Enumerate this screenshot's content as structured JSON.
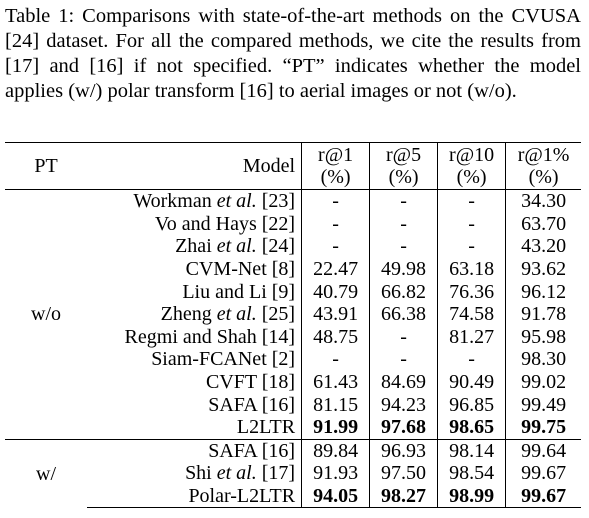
{
  "caption": "Table 1: Comparisons with state-of-the-art methods on the CVUSA [24] dataset. For all the compared methods, we cite the results from [17] and [16] if not specified. “PT” indicates whether the model applies (w/) polar transform [16] to aerial images or not (w/o).",
  "table": {
    "header": [
      "PT",
      "Model",
      [
        "r@1",
        "(%)"
      ],
      [
        "r@5",
        "(%)"
      ],
      [
        "r@10",
        "(%)"
      ],
      [
        "r@1%",
        "(%)"
      ]
    ],
    "groups": [
      {
        "pt": "w/o",
        "rows": [
          {
            "model": [
              "Workman ",
              "et al.",
              " [23]"
            ],
            "values": [
              "-",
              "-",
              "-",
              "34.30"
            ],
            "bold": false
          },
          {
            "model": [
              "Vo and Hays [22]"
            ],
            "values": [
              "-",
              "-",
              "-",
              "63.70"
            ],
            "bold": false
          },
          {
            "model": [
              "Zhai ",
              "et al.",
              " [24]"
            ],
            "values": [
              "-",
              "-",
              "-",
              "43.20"
            ],
            "bold": false
          },
          {
            "model": [
              "CVM-Net [8]"
            ],
            "values": [
              "22.47",
              "49.98",
              "63.18",
              "93.62"
            ],
            "bold": false
          },
          {
            "model": [
              "Liu and Li [9]"
            ],
            "values": [
              "40.79",
              "66.82",
              "76.36",
              "96.12"
            ],
            "bold": false
          },
          {
            "model": [
              "Zheng ",
              "et al.",
              " [25]"
            ],
            "values": [
              "43.91",
              "66.38",
              "74.58",
              "91.78"
            ],
            "bold": false
          },
          {
            "model": [
              "Regmi and Shah [14]"
            ],
            "values": [
              "48.75",
              "-",
              "81.27",
              "95.98"
            ],
            "bold": false
          },
          {
            "model": [
              "Siam-FCANet [2]"
            ],
            "values": [
              "-",
              "-",
              "-",
              "98.30"
            ],
            "bold": false
          },
          {
            "model": [
              "CVFT [18]"
            ],
            "values": [
              "61.43",
              "84.69",
              "90.49",
              "99.02"
            ],
            "bold": false
          },
          {
            "model": [
              "SAFA [16]"
            ],
            "values": [
              "81.15",
              "94.23",
              "96.85",
              "99.49"
            ],
            "bold": false
          },
          {
            "model": [
              "L2LTR"
            ],
            "values": [
              "91.99",
              "97.68",
              "98.65",
              "99.75"
            ],
            "bold": true
          }
        ]
      },
      {
        "pt": "w/",
        "rows": [
          {
            "model": [
              "SAFA [16]"
            ],
            "values": [
              "89.84",
              "96.93",
              "98.14",
              "99.64"
            ],
            "bold": false
          },
          {
            "model": [
              "Shi ",
              "et al.",
              " [17]"
            ],
            "values": [
              "91.93",
              "97.50",
              "98.54",
              "99.67"
            ],
            "bold": false
          },
          {
            "model": [
              "Polar-L2LTR"
            ],
            "values": [
              "94.05",
              "98.27",
              "98.99",
              "99.67"
            ],
            "bold": true
          }
        ]
      }
    ]
  }
}
